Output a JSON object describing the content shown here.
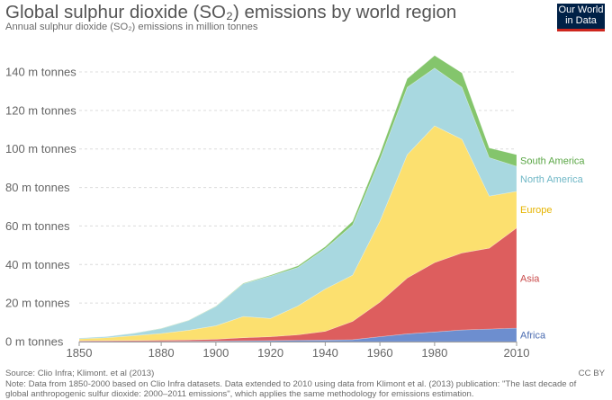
{
  "header": {
    "title": "Global sulphur dioxide (SO₂) emissions by world region",
    "subtitle": "Annual sulphur dioxide (SO₂) emissions in million tonnes"
  },
  "logo": {
    "line1": "Our World",
    "line2": "in Data",
    "bg": "#002147",
    "accent": "#ce261e"
  },
  "footer": {
    "source": "Source: Clio Infra; Klimont. et al (2013)",
    "note_line1": "Note: Data from 1850-2000 based on Clio Infra datasets. Data extended to 2010 using data from Klimont et al. (2013) publication: \"The last decade of",
    "note_line2": "global anthropogenic sulfur dioxide: 2000–2011 emissions\", which applies the same methodology for emissions estimation.",
    "license": "CC BY"
  },
  "chart_data": {
    "type": "area",
    "stacked": true,
    "x": [
      1850,
      1860,
      1870,
      1880,
      1890,
      1900,
      1910,
      1920,
      1930,
      1940,
      1950,
      1960,
      1970,
      1980,
      1990,
      2000,
      2010
    ],
    "series": [
      {
        "name": "Africa",
        "color": "#6d8ecf",
        "values": [
          0.1,
          0.1,
          0.1,
          0.1,
          0.2,
          0.3,
          0.4,
          0.5,
          0.7,
          0.8,
          1,
          2.5,
          4,
          5,
          6,
          6.5,
          7
        ]
      },
      {
        "name": "Asia",
        "color": "#dd5e5e",
        "values": [
          0.3,
          0.4,
          0.5,
          0.6,
          0.7,
          0.9,
          1.6,
          2,
          2.8,
          4.5,
          9.5,
          18,
          29,
          36,
          40,
          42,
          52
        ]
      },
      {
        "name": "Europe",
        "color": "#fce06f",
        "values": [
          1,
          1.5,
          2.5,
          3.5,
          5,
          7,
          11,
          9.5,
          15,
          22,
          24,
          42,
          64,
          71,
          59,
          27,
          19
        ]
      },
      {
        "name": "North America",
        "color": "#a8d8e0",
        "values": [
          0.4,
          0.6,
          1.2,
          2.5,
          5,
          10,
          17,
          22,
          20,
          21,
          26,
          32,
          35,
          30,
          27,
          20,
          13
        ]
      },
      {
        "name": "South America",
        "color": "#84c56c",
        "values": [
          0,
          0,
          0.1,
          0.1,
          0.1,
          0.2,
          0.3,
          0.5,
          0.8,
          1,
          2,
          3,
          4.5,
          6.5,
          7.5,
          5,
          6
        ]
      }
    ],
    "y_ticks": [
      0,
      20,
      40,
      60,
      80,
      100,
      120,
      140
    ],
    "y_tick_labels": [
      "0 m tonnes",
      "20 m tonnes",
      "40 m tonnes",
      "60 m tonnes",
      "80 m tonnes",
      "100 m tonnes",
      "120 m tonnes",
      "140 m tonnes"
    ],
    "x_ticks": [
      1850,
      1880,
      1900,
      1920,
      1940,
      1960,
      1980,
      2010
    ],
    "x_tick_labels": [
      "1850",
      "1880",
      "1900",
      "1920",
      "1940",
      "1960",
      "1980",
      "2010"
    ],
    "xlim": [
      1850,
      2010
    ],
    "ylim": [
      0,
      150
    ],
    "grid": "horizontal dashed",
    "legend": "right, labels at series ends"
  }
}
